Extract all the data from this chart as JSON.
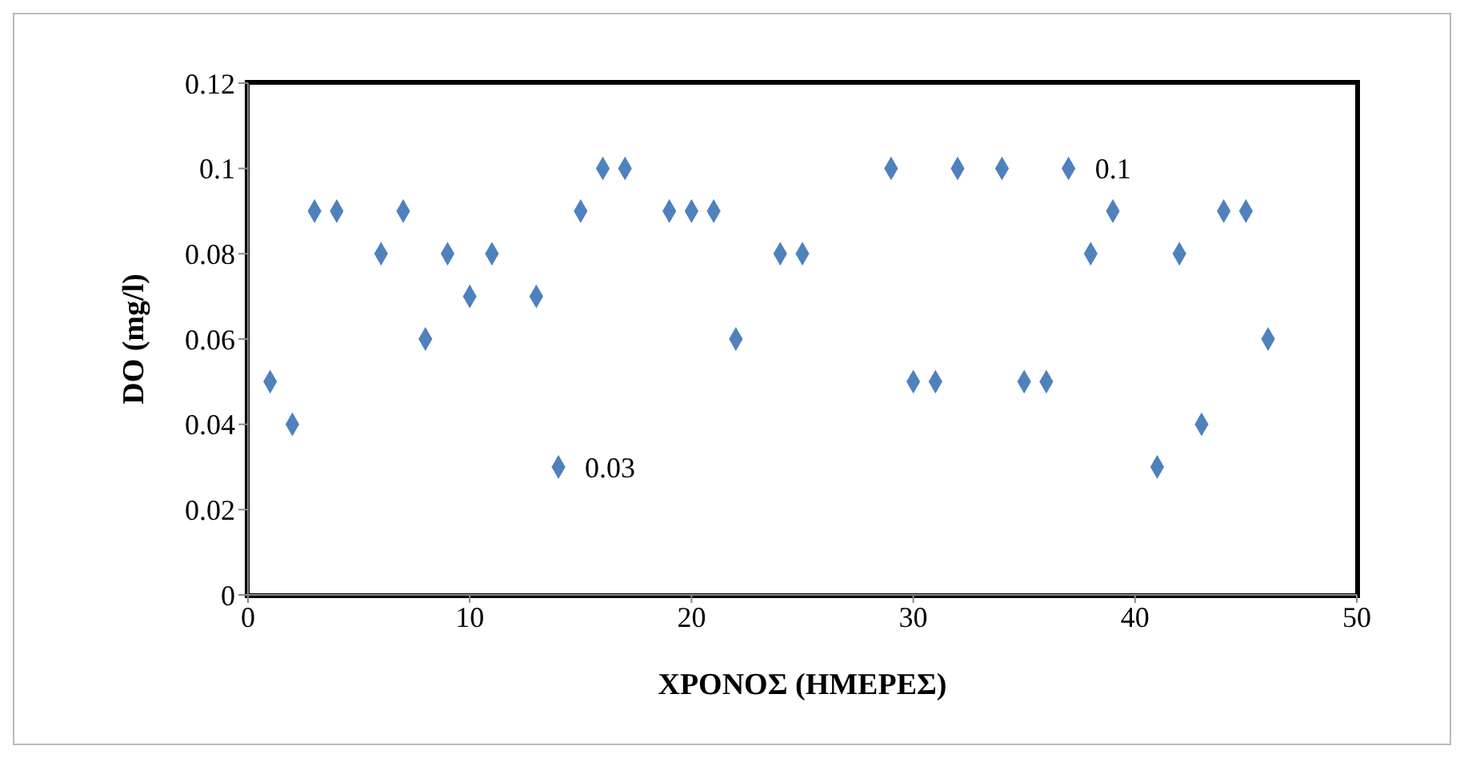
{
  "chart_data": {
    "type": "scatter",
    "xlabel": "ΧΡΟΝΟΣ (ΗΜΕΡΕΣ)",
    "ylabel": "DO (mg/l)",
    "x": [
      1,
      2,
      3,
      4,
      6,
      7,
      8,
      9,
      10,
      11,
      13,
      14,
      15,
      16,
      17,
      19,
      20,
      21,
      22,
      24,
      25,
      29,
      30,
      31,
      32,
      34,
      35,
      36,
      37,
      38,
      39,
      41,
      42,
      43,
      44,
      45,
      46
    ],
    "series": [
      {
        "color": "#4f81bd",
        "values": [
          0.05,
          0.04,
          0.09,
          0.09,
          0.08,
          0.09,
          0.06,
          0.08,
          0.07,
          0.08,
          0.07,
          0.03,
          0.09,
          0.1,
          0.1,
          0.09,
          0.09,
          0.09,
          0.06,
          0.08,
          0.08,
          0.1,
          0.05,
          0.05,
          0.1,
          0.1,
          0.05,
          0.05,
          0.1,
          0.08,
          0.09,
          0.03,
          0.08,
          0.04,
          0.09,
          0.09,
          0.06
        ],
        "value_labels": [
          null,
          null,
          null,
          null,
          null,
          null,
          null,
          null,
          null,
          null,
          null,
          "0.03",
          null,
          null,
          null,
          null,
          null,
          null,
          null,
          null,
          null,
          null,
          null,
          null,
          null,
          null,
          null,
          null,
          "0.1",
          null,
          null,
          null,
          null,
          null,
          null,
          null,
          null
        ]
      }
    ],
    "xlim": [
      0,
      50
    ],
    "xticks": [
      0,
      10,
      20,
      30,
      40,
      50
    ],
    "ylim": [
      0,
      0.12
    ],
    "yticks": [
      0,
      0.02,
      0.04,
      0.06,
      0.08,
      0.1,
      0.12
    ],
    "marker": "diamond",
    "grid": false
  }
}
